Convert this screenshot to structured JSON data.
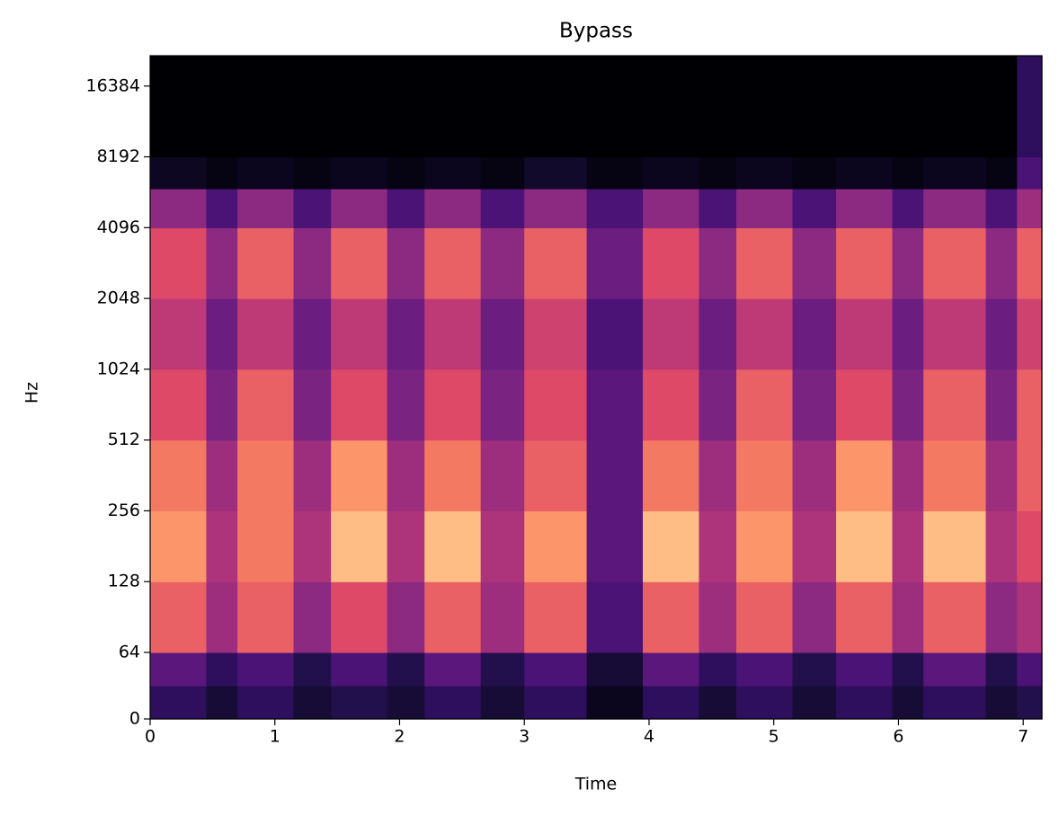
{
  "chart_data": {
    "type": "spectrogram",
    "title": "Bypass",
    "x_label": "Time",
    "y_label": "Hz",
    "colormap": "magma",
    "yscale": "symlog",
    "linthresh": 64,
    "xlim": [
      0,
      7.15
    ],
    "xticks": [
      0,
      1,
      2,
      3,
      4,
      5,
      6,
      7
    ],
    "ylim": [
      0,
      22050
    ],
    "yticks": [
      0,
      64,
      128,
      256,
      512,
      1024,
      2048,
      4096,
      8192,
      16384
    ],
    "time_edges": [
      0,
      0.45,
      0.7,
      1.15,
      1.45,
      1.9,
      2.2,
      2.65,
      3.0,
      3.5,
      3.95,
      4.4,
      4.7,
      5.15,
      5.5,
      5.95,
      6.2,
      6.7,
      6.95,
      7.15
    ],
    "freq_edges": [
      0,
      32,
      64,
      128,
      256,
      512,
      1024,
      2048,
      4096,
      6000,
      8192,
      22050
    ],
    "values": [
      [
        0.2,
        0.1,
        0.2,
        0.1,
        0.15,
        0.1,
        0.2,
        0.1,
        0.2,
        0.05,
        0.2,
        0.1,
        0.2,
        0.1,
        0.2,
        0.1,
        0.2,
        0.1,
        0.15
      ],
      [
        0.35,
        0.2,
        0.3,
        0.15,
        0.3,
        0.15,
        0.35,
        0.15,
        0.3,
        0.1,
        0.35,
        0.2,
        0.3,
        0.15,
        0.3,
        0.15,
        0.35,
        0.15,
        0.3
      ],
      [
        0.8,
        0.55,
        0.8,
        0.5,
        0.75,
        0.5,
        0.8,
        0.55,
        0.8,
        0.3,
        0.8,
        0.55,
        0.8,
        0.5,
        0.8,
        0.55,
        0.8,
        0.5,
        0.6
      ],
      [
        0.9,
        0.6,
        0.85,
        0.6,
        0.95,
        0.6,
        0.95,
        0.6,
        0.9,
        0.35,
        0.95,
        0.6,
        0.9,
        0.6,
        0.95,
        0.6,
        0.95,
        0.6,
        0.75
      ],
      [
        0.85,
        0.55,
        0.85,
        0.55,
        0.9,
        0.55,
        0.85,
        0.55,
        0.8,
        0.35,
        0.85,
        0.55,
        0.85,
        0.55,
        0.9,
        0.55,
        0.85,
        0.55,
        0.8
      ],
      [
        0.75,
        0.45,
        0.8,
        0.45,
        0.75,
        0.45,
        0.75,
        0.45,
        0.75,
        0.35,
        0.75,
        0.45,
        0.8,
        0.45,
        0.75,
        0.45,
        0.8,
        0.45,
        0.8
      ],
      [
        0.65,
        0.4,
        0.65,
        0.4,
        0.65,
        0.4,
        0.65,
        0.4,
        0.7,
        0.3,
        0.65,
        0.4,
        0.65,
        0.4,
        0.65,
        0.4,
        0.65,
        0.4,
        0.7
      ],
      [
        0.75,
        0.5,
        0.8,
        0.5,
        0.8,
        0.5,
        0.8,
        0.5,
        0.8,
        0.4,
        0.75,
        0.5,
        0.8,
        0.5,
        0.8,
        0.5,
        0.8,
        0.5,
        0.8
      ],
      [
        0.5,
        0.3,
        0.5,
        0.3,
        0.5,
        0.3,
        0.5,
        0.3,
        0.5,
        0.3,
        0.5,
        0.3,
        0.5,
        0.3,
        0.5,
        0.3,
        0.5,
        0.3,
        0.55
      ],
      [
        0.06,
        0.03,
        0.05,
        0.03,
        0.05,
        0.03,
        0.05,
        0.03,
        0.08,
        0.03,
        0.05,
        0.03,
        0.05,
        0.03,
        0.05,
        0.03,
        0.05,
        0.03,
        0.3
      ],
      [
        0,
        0,
        0,
        0,
        0,
        0,
        0,
        0,
        0,
        0,
        0,
        0,
        0,
        0,
        0,
        0,
        0,
        0,
        0.2
      ]
    ]
  }
}
